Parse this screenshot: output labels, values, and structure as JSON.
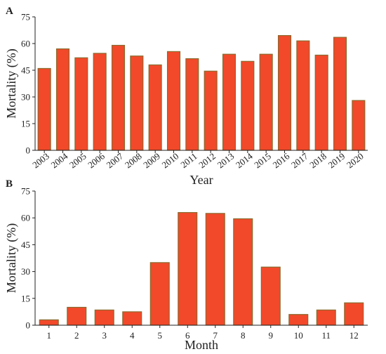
{
  "colors": {
    "bar_fill": "#f2492a",
    "bar_edge": "#8a6a2e",
    "axis": "#222222"
  },
  "chart_data": [
    {
      "type": "bar",
      "panel": "A",
      "xlabel": "Year",
      "ylabel": "Mortality (%)",
      "ylim": [
        0,
        75
      ],
      "yticks": [
        0,
        15,
        30,
        45,
        60,
        75
      ],
      "categories": [
        "2003",
        "2004",
        "2005",
        "2006",
        "2007",
        "2008",
        "2009",
        "2010",
        "2011",
        "2012",
        "2013",
        "2014",
        "2015",
        "2016",
        "2017",
        "2018",
        "2019",
        "2020"
      ],
      "values": [
        46,
        57,
        52,
        54.5,
        59,
        53,
        48,
        55.5,
        51.5,
        44.5,
        54,
        50,
        54,
        64.5,
        61.5,
        53.5,
        63.5,
        28
      ],
      "tick_label_rotation": "diagonal",
      "grid": false
    },
    {
      "type": "bar",
      "panel": "B",
      "xlabel": "Month",
      "ylabel": "Mortality (%)",
      "ylim": [
        0,
        75
      ],
      "yticks": [
        0,
        15,
        30,
        45,
        60,
        75
      ],
      "categories": [
        "1",
        "2",
        "3",
        "4",
        "5",
        "6",
        "7",
        "8",
        "9",
        "10",
        "11",
        "12"
      ],
      "values": [
        3,
        10,
        8.5,
        7.5,
        35,
        63,
        62.5,
        59.5,
        32.5,
        6,
        8.5,
        12.5
      ],
      "tick_label_rotation": "none",
      "grid": false
    }
  ]
}
